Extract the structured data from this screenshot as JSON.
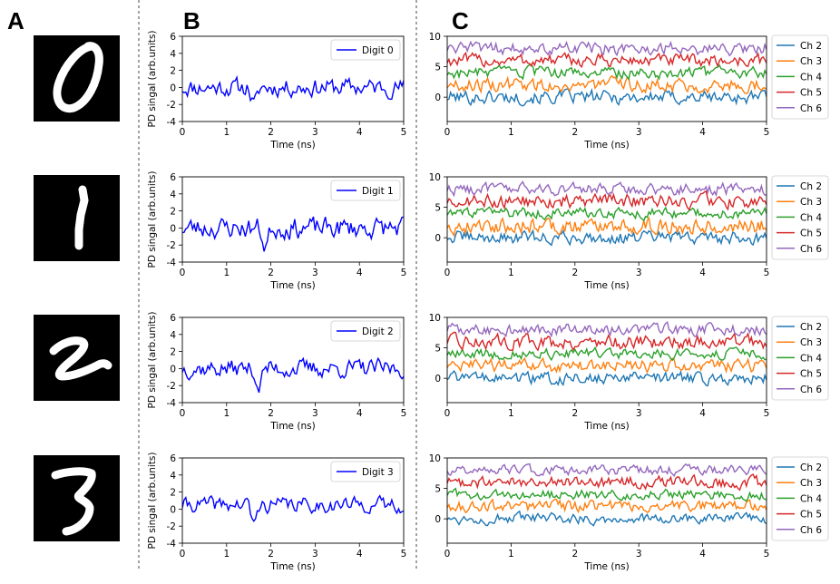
{
  "panel_labels": [
    "A",
    "B",
    "C"
  ],
  "colors": {
    "pd": "#0000ff",
    "channels": [
      "#1f77b4",
      "#ff7f0e",
      "#2ca02c",
      "#d62728",
      "#9467bd"
    ]
  },
  "digit_images": [
    "0",
    "1",
    "2",
    "3"
  ],
  "chart_data": [
    {
      "type": "line",
      "panel": "B",
      "row": 0,
      "title": "",
      "xlabel": "Time (ns)",
      "ylabel": "PD singal (arb.units)",
      "xlim": [
        0,
        5
      ],
      "ylim": [
        -4,
        6
      ],
      "xticks": [
        0,
        1,
        2,
        3,
        4,
        5
      ],
      "yticks": [
        -4,
        -2,
        0,
        2,
        4,
        6
      ],
      "legend_loc": "upper right",
      "series": [
        {
          "name": "Digit 0",
          "color": "#0000ff",
          "mean": 0,
          "amp": 1.2,
          "seed": 11,
          "dip_at": 1.5
        }
      ]
    },
    {
      "type": "line",
      "panel": "B",
      "row": 1,
      "title": "",
      "xlabel": "Time (ns)",
      "ylabel": "PD singal (arb.units)",
      "xlim": [
        0,
        5
      ],
      "ylim": [
        -4,
        6
      ],
      "xticks": [
        0,
        1,
        2,
        3,
        4,
        5
      ],
      "yticks": [
        -4,
        -2,
        0,
        2,
        4,
        6
      ],
      "legend_loc": "upper right",
      "series": [
        {
          "name": "Digit 1",
          "color": "#0000ff",
          "mean": 0,
          "amp": 1.4,
          "seed": 23,
          "dip_at": 1.75
        }
      ]
    },
    {
      "type": "line",
      "panel": "B",
      "row": 2,
      "title": "",
      "xlabel": "Time (ns)",
      "ylabel": "PD singal (arb.units)",
      "xlim": [
        0,
        5
      ],
      "ylim": [
        -4,
        6
      ],
      "xticks": [
        0,
        1,
        2,
        3,
        4,
        5
      ],
      "yticks": [
        -4,
        -2,
        0,
        2,
        4,
        6
      ],
      "legend_loc": "upper right",
      "series": [
        {
          "name": "Digit 2",
          "color": "#0000ff",
          "mean": 0,
          "amp": 1.2,
          "seed": 37,
          "dip_at": 1.6
        }
      ]
    },
    {
      "type": "line",
      "panel": "B",
      "row": 3,
      "title": "",
      "xlabel": "Time (ns)",
      "ylabel": "PD singal (arb.units)",
      "xlim": [
        0,
        5
      ],
      "ylim": [
        -4,
        6
      ],
      "xticks": [
        0,
        1,
        2,
        3,
        4,
        5
      ],
      "yticks": [
        -4,
        -2,
        0,
        2,
        4,
        6
      ],
      "legend_loc": "upper right",
      "series": [
        {
          "name": "Digit 3",
          "color": "#0000ff",
          "mean": 0.5,
          "amp": 1.0,
          "seed": 41,
          "dip_at": 1.5
        }
      ]
    },
    {
      "type": "line",
      "panel": "C",
      "row": 0,
      "title": "",
      "xlabel": "Time (ns)",
      "ylabel": "",
      "xlim": [
        0,
        5
      ],
      "ylim": [
        -4,
        10
      ],
      "xticks": [
        0,
        1,
        2,
        3,
        4,
        5
      ],
      "yticks": [
        0,
        5,
        10
      ],
      "legend_loc": "outside right",
      "series": [
        {
          "name": "Ch 2",
          "color": "#1f77b4",
          "mean": 0,
          "amp": 1.3,
          "seed": 101
        },
        {
          "name": "Ch 3",
          "color": "#ff7f0e",
          "mean": 2,
          "amp": 1.3,
          "seed": 102
        },
        {
          "name": "Ch 4",
          "color": "#2ca02c",
          "mean": 4,
          "amp": 1.1,
          "seed": 103
        },
        {
          "name": "Ch 5",
          "color": "#d62728",
          "mean": 6,
          "amp": 1.2,
          "seed": 104
        },
        {
          "name": "Ch 6",
          "color": "#9467bd",
          "mean": 8,
          "amp": 1.2,
          "seed": 105
        }
      ]
    },
    {
      "type": "line",
      "panel": "C",
      "row": 1,
      "title": "",
      "xlabel": "Time (ns)",
      "ylabel": "",
      "xlim": [
        0,
        5
      ],
      "ylim": [
        -4,
        10
      ],
      "xticks": [
        0,
        1,
        2,
        3,
        4,
        5
      ],
      "yticks": [
        0,
        5,
        10
      ],
      "legend_loc": "outside right",
      "series": [
        {
          "name": "Ch 2",
          "color": "#1f77b4",
          "mean": 0,
          "amp": 1.2,
          "seed": 201
        },
        {
          "name": "Ch 3",
          "color": "#ff7f0e",
          "mean": 2,
          "amp": 1.5,
          "seed": 202
        },
        {
          "name": "Ch 4",
          "color": "#2ca02c",
          "mean": 4,
          "amp": 1.0,
          "seed": 203
        },
        {
          "name": "Ch 5",
          "color": "#d62728",
          "mean": 6,
          "amp": 1.3,
          "seed": 204
        },
        {
          "name": "Ch 6",
          "color": "#9467bd",
          "mean": 8,
          "amp": 1.1,
          "seed": 205
        }
      ]
    },
    {
      "type": "line",
      "panel": "C",
      "row": 2,
      "title": "",
      "xlabel": "Time (ns)",
      "ylabel": "",
      "xlim": [
        0,
        5
      ],
      "ylim": [
        -4,
        10
      ],
      "xticks": [
        0,
        1,
        2,
        3,
        4,
        5
      ],
      "yticks": [
        0,
        5,
        10
      ],
      "legend_loc": "outside right",
      "series": [
        {
          "name": "Ch 2",
          "color": "#1f77b4",
          "mean": 0,
          "amp": 1.1,
          "seed": 301
        },
        {
          "name": "Ch 3",
          "color": "#ff7f0e",
          "mean": 2,
          "amp": 1.2,
          "seed": 302
        },
        {
          "name": "Ch 4",
          "color": "#2ca02c",
          "mean": 4,
          "amp": 1.0,
          "seed": 303
        },
        {
          "name": "Ch 5",
          "color": "#d62728",
          "mean": 6,
          "amp": 1.3,
          "seed": 304
        },
        {
          "name": "Ch 6",
          "color": "#9467bd",
          "mean": 8,
          "amp": 1.1,
          "seed": 305
        }
      ]
    },
    {
      "type": "line",
      "panel": "C",
      "row": 3,
      "title": "",
      "xlabel": "Time (ns)",
      "ylabel": "",
      "xlim": [
        0,
        5
      ],
      "ylim": [
        -4,
        10
      ],
      "xticks": [
        0,
        1,
        2,
        3,
        4,
        5
      ],
      "yticks": [
        0,
        5,
        10
      ],
      "legend_loc": "outside right",
      "series": [
        {
          "name": "Ch 2",
          "color": "#1f77b4",
          "mean": 0,
          "amp": 1.0,
          "seed": 401
        },
        {
          "name": "Ch 3",
          "color": "#ff7f0e",
          "mean": 2,
          "amp": 1.1,
          "seed": 402
        },
        {
          "name": "Ch 4",
          "color": "#2ca02c",
          "mean": 4,
          "amp": 0.9,
          "seed": 403
        },
        {
          "name": "Ch 5",
          "color": "#d62728",
          "mean": 6,
          "amp": 1.1,
          "seed": 404
        },
        {
          "name": "Ch 6",
          "color": "#9467bd",
          "mean": 8,
          "amp": 0.9,
          "seed": 405
        }
      ]
    }
  ]
}
